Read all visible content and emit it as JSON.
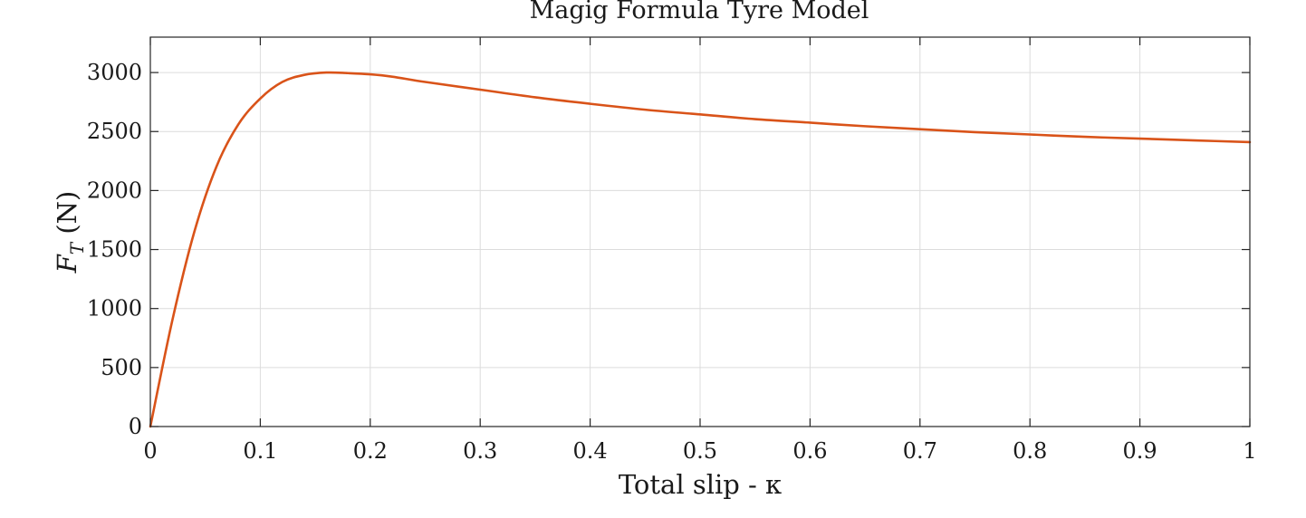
{
  "chart_data": {
    "type": "line",
    "title": "Magig Formula Tyre Model",
    "xlabel": "Total slip - κ",
    "ylabel_main": "F",
    "ylabel_sub": "T",
    "ylabel_unit": " (N)",
    "xlim": [
      0,
      1
    ],
    "ylim": [
      0,
      3300
    ],
    "xticks": [
      0,
      0.1,
      0.2,
      0.3,
      0.4,
      0.5,
      0.6,
      0.7,
      0.8,
      0.9,
      1
    ],
    "xtick_labels": [
      "0",
      "0.1",
      "0.2",
      "0.3",
      "0.4",
      "0.5",
      "0.6",
      "0.7",
      "0.8",
      "0.9",
      "1"
    ],
    "yticks": [
      0,
      500,
      1000,
      1500,
      2000,
      2500,
      3000
    ],
    "ytick_labels": [
      "0",
      "500",
      "1000",
      "1500",
      "2000",
      "2500",
      "3000"
    ],
    "grid": true,
    "line_color": "#d95319",
    "series": [
      {
        "x": [
          0,
          0.02,
          0.04,
          0.06,
          0.08,
          0.1,
          0.12,
          0.14,
          0.16,
          0.18,
          0.2,
          0.22,
          0.25,
          0.3,
          0.35,
          0.4,
          0.45,
          0.5,
          0.55,
          0.6,
          0.65,
          0.7,
          0.75,
          0.8,
          0.85,
          0.9,
          0.95,
          1.0
        ],
        "y": [
          0,
          900,
          1650,
          2200,
          2560,
          2780,
          2920,
          2980,
          3000,
          2995,
          2985,
          2965,
          2920,
          2855,
          2790,
          2735,
          2685,
          2645,
          2605,
          2575,
          2545,
          2520,
          2495,
          2475,
          2455,
          2440,
          2425,
          2410
        ]
      }
    ]
  }
}
